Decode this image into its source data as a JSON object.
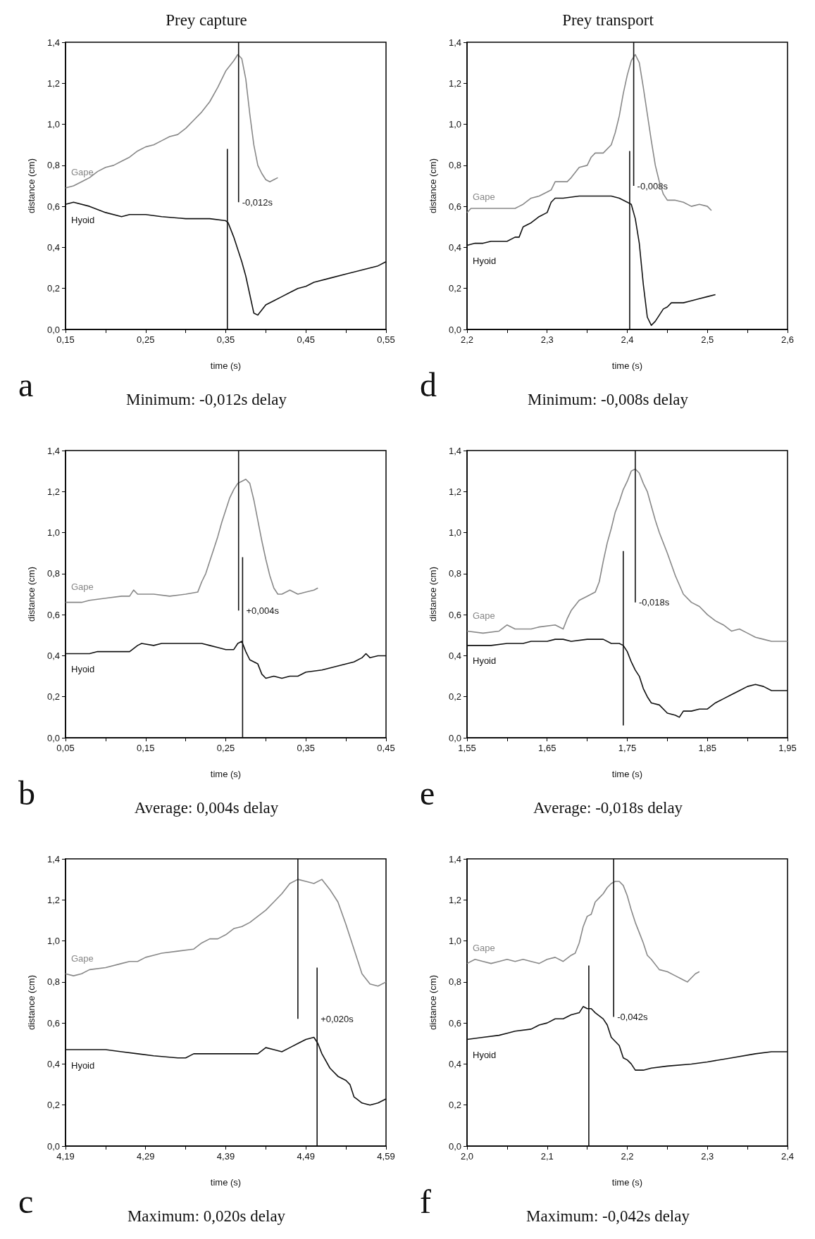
{
  "chart_data": [
    {
      "type": "line",
      "title": "Prey capture",
      "subtitle": "Minimum: -0,012s delay",
      "xlabel": "time (s)",
      "ylabel": "distance (cm)",
      "xlim": [
        0.15,
        0.55
      ],
      "xticks": [
        {
          "value": 0.15,
          "label": "0,15"
        },
        {
          "value": 0.2,
          "label": null
        },
        {
          "value": 0.25,
          "label": "0,25"
        },
        {
          "value": 0.3,
          "label": null
        },
        {
          "value": 0.35,
          "label": "0,35"
        },
        {
          "value": 0.4,
          "label": null
        },
        {
          "value": 0.45,
          "label": "0,45"
        },
        {
          "value": 0.5,
          "label": null
        },
        {
          "value": 0.55,
          "label": "0,55"
        }
      ],
      "ylim": [
        0,
        1.4
      ],
      "yticks": [
        {
          "value": 0,
          "label": "0,0"
        },
        {
          "value": 0.2,
          "label": "0,2"
        },
        {
          "value": 0.4,
          "label": "0,4"
        },
        {
          "value": 0.6,
          "label": "0,6"
        },
        {
          "value": 0.8,
          "label": "0,8"
        },
        {
          "value": 1,
          "label": "1,0"
        },
        {
          "value": 1.2,
          "label": "1,2"
        },
        {
          "value": 1.4,
          "label": "1,4"
        }
      ],
      "annotations": [
        "a",
        "-0,012s"
      ],
      "series": [
        {
          "name": "Gape",
          "color": "#888888",
          "x": [
            0.15,
            0.16,
            0.17,
            0.18,
            0.19,
            0.2,
            0.21,
            0.22,
            0.23,
            0.24,
            0.25,
            0.26,
            0.27,
            0.28,
            0.29,
            0.3,
            0.31,
            0.32,
            0.33,
            0.34,
            0.35,
            0.36,
            0.365,
            0.37,
            0.375,
            0.38,
            0.385,
            0.39,
            0.395,
            0.4,
            0.405,
            0.41,
            0.415
          ],
          "values": [
            0.69,
            0.7,
            0.72,
            0.74,
            0.77,
            0.79,
            0.8,
            0.82,
            0.84,
            0.87,
            0.89,
            0.9,
            0.92,
            0.94,
            0.95,
            0.98,
            1.02,
            1.06,
            1.11,
            1.18,
            1.26,
            1.31,
            1.34,
            1.32,
            1.22,
            1.05,
            0.9,
            0.8,
            0.76,
            0.73,
            0.72,
            0.73,
            0.74
          ]
        },
        {
          "name": "Hyoid",
          "color": "#111111",
          "x": [
            0.15,
            0.16,
            0.18,
            0.2,
            0.22,
            0.23,
            0.25,
            0.27,
            0.3,
            0.33,
            0.35,
            0.353,
            0.36,
            0.37,
            0.375,
            0.38,
            0.385,
            0.39,
            0.4,
            0.41,
            0.42,
            0.43,
            0.44,
            0.45,
            0.46,
            0.48,
            0.5,
            0.52,
            0.54,
            0.55
          ],
          "values": [
            0.61,
            0.62,
            0.6,
            0.57,
            0.55,
            0.56,
            0.56,
            0.55,
            0.54,
            0.54,
            0.53,
            0.52,
            0.45,
            0.33,
            0.26,
            0.17,
            0.08,
            0.07,
            0.12,
            0.14,
            0.16,
            0.18,
            0.2,
            0.21,
            0.23,
            0.25,
            0.27,
            0.29,
            0.31,
            0.33
          ]
        },
        {
          "color": "#111111",
          "x": [
            0.366,
            0.366
          ],
          "values": [
            1.4,
            0.62
          ]
        },
        {
          "color": "#111111",
          "x": [
            0.352,
            0.352
          ],
          "values": [
            0.88,
            0
          ]
        }
      ]
    },
    {
      "type": "line",
      "title": "Prey transport",
      "subtitle": "Minimum: -0,008s delay",
      "xlabel": "time (s)",
      "ylabel": "distance (cm)",
      "xlim": [
        2.2,
        2.6
      ],
      "xticks": [
        {
          "value": 2.2,
          "label": "2,2"
        },
        {
          "value": 2.25,
          "label": null
        },
        {
          "value": 2.3,
          "label": "2,3"
        },
        {
          "value": 2.35,
          "label": null
        },
        {
          "value": 2.4,
          "label": "2,4"
        },
        {
          "value": 2.45,
          "label": null
        },
        {
          "value": 2.5,
          "label": "2,5"
        },
        {
          "value": 2.55,
          "label": null
        },
        {
          "value": 2.6,
          "label": "2,6"
        }
      ],
      "ylim": [
        0,
        1.4
      ],
      "yticks": [
        {
          "value": 0,
          "label": "0,0"
        },
        {
          "value": 0.2,
          "label": "0,2"
        },
        {
          "value": 0.4,
          "label": "0,4"
        },
        {
          "value": 0.6,
          "label": "0,6"
        },
        {
          "value": 0.8,
          "label": "0,8"
        },
        {
          "value": 1,
          "label": "1,0"
        },
        {
          "value": 1.2,
          "label": "1,2"
        },
        {
          "value": 1.4,
          "label": "1,4"
        }
      ],
      "annotations": [
        "d",
        "-0,008s"
      ],
      "series": [
        {
          "name": "Gape",
          "color": "#888888",
          "x": [
            2.2,
            2.205,
            2.25,
            2.26,
            2.265,
            2.27,
            2.28,
            2.29,
            2.3,
            2.305,
            2.31,
            2.32,
            2.325,
            2.33,
            2.34,
            2.35,
            2.355,
            2.36,
            2.37,
            2.38,
            2.385,
            2.39,
            2.395,
            2.4,
            2.405,
            2.41,
            2.415,
            2.42,
            2.425,
            2.43,
            2.435,
            2.44,
            2.445,
            2.45,
            2.46,
            2.47,
            2.48,
            2.49,
            2.5,
            2.505
          ],
          "values": [
            0.57,
            0.59,
            0.59,
            0.59,
            0.6,
            0.61,
            0.64,
            0.65,
            0.67,
            0.68,
            0.72,
            0.72,
            0.72,
            0.74,
            0.79,
            0.8,
            0.84,
            0.86,
            0.86,
            0.9,
            0.96,
            1.04,
            1.15,
            1.24,
            1.31,
            1.34,
            1.3,
            1.18,
            1.05,
            0.92,
            0.8,
            0.72,
            0.66,
            0.63,
            0.63,
            0.62,
            0.6,
            0.61,
            0.6,
            0.58
          ]
        },
        {
          "name": "Hyoid",
          "color": "#111111",
          "x": [
            2.2,
            2.21,
            2.22,
            2.23,
            2.25,
            2.26,
            2.265,
            2.27,
            2.28,
            2.29,
            2.3,
            2.305,
            2.31,
            2.32,
            2.34,
            2.36,
            2.38,
            2.39,
            2.4,
            2.405,
            2.41,
            2.415,
            2.42,
            2.425,
            2.43,
            2.435,
            2.44,
            2.445,
            2.45,
            2.455,
            2.47,
            2.48,
            2.49,
            2.5,
            2.51
          ],
          "values": [
            0.41,
            0.42,
            0.42,
            0.43,
            0.43,
            0.45,
            0.45,
            0.5,
            0.52,
            0.55,
            0.57,
            0.62,
            0.64,
            0.64,
            0.65,
            0.65,
            0.65,
            0.64,
            0.62,
            0.61,
            0.54,
            0.42,
            0.22,
            0.06,
            0.02,
            0.04,
            0.07,
            0.1,
            0.11,
            0.13,
            0.13,
            0.14,
            0.15,
            0.16,
            0.17
          ]
        },
        {
          "color": "#111111",
          "x": [
            2.408,
            2.408
          ],
          "values": [
            1.4,
            0.7
          ]
        },
        {
          "color": "#111111",
          "x": [
            2.403,
            2.403
          ],
          "values": [
            0.87,
            0
          ]
        }
      ]
    },
    {
      "type": "line",
      "subtitle": "Average: 0,004s delay",
      "xlabel": "time (s)",
      "ylabel": "distance (cm)",
      "xlim": [
        0.05,
        0.45
      ],
      "xticks": [
        {
          "value": 0.05,
          "label": "0,05"
        },
        {
          "value": 0.1,
          "label": null
        },
        {
          "value": 0.15,
          "label": "0,15"
        },
        {
          "value": 0.2,
          "label": null
        },
        {
          "value": 0.25,
          "label": "0,25"
        },
        {
          "value": 0.3,
          "label": null
        },
        {
          "value": 0.35,
          "label": "0,35"
        },
        {
          "value": 0.4,
          "label": null
        },
        {
          "value": 0.45,
          "label": "0,45"
        }
      ],
      "ylim": [
        0,
        1.4
      ],
      "yticks": [
        {
          "value": 0,
          "label": "0,0"
        },
        {
          "value": 0.2,
          "label": "0,2"
        },
        {
          "value": 0.4,
          "label": "0,4"
        },
        {
          "value": 0.6,
          "label": "0,6"
        },
        {
          "value": 0.8,
          "label": "0,8"
        },
        {
          "value": 1,
          "label": "1,0"
        },
        {
          "value": 1.2,
          "label": "1,2"
        },
        {
          "value": 1.4,
          "label": "1,4"
        }
      ],
      "annotations": [
        "b",
        "+0,004s"
      ],
      "series": [
        {
          "name": "Gape",
          "color": "#888888",
          "x": [
            0.05,
            0.07,
            0.08,
            0.1,
            0.12,
            0.13,
            0.135,
            0.14,
            0.16,
            0.18,
            0.2,
            0.215,
            0.22,
            0.225,
            0.23,
            0.235,
            0.24,
            0.245,
            0.25,
            0.255,
            0.26,
            0.265,
            0.27,
            0.275,
            0.28,
            0.285,
            0.29,
            0.295,
            0.3,
            0.305,
            0.31,
            0.315,
            0.32,
            0.33,
            0.34,
            0.35,
            0.36,
            0.365
          ],
          "values": [
            0.66,
            0.66,
            0.67,
            0.68,
            0.69,
            0.69,
            0.72,
            0.7,
            0.7,
            0.69,
            0.7,
            0.71,
            0.76,
            0.8,
            0.86,
            0.92,
            0.98,
            1.05,
            1.11,
            1.17,
            1.21,
            1.24,
            1.25,
            1.26,
            1.24,
            1.16,
            1.06,
            0.96,
            0.87,
            0.79,
            0.73,
            0.7,
            0.7,
            0.72,
            0.7,
            0.71,
            0.72,
            0.73
          ]
        },
        {
          "name": "Hyoid",
          "color": "#111111",
          "x": [
            0.05,
            0.08,
            0.09,
            0.12,
            0.13,
            0.14,
            0.145,
            0.16,
            0.17,
            0.19,
            0.22,
            0.23,
            0.24,
            0.25,
            0.26,
            0.265,
            0.27,
            0.275,
            0.28,
            0.29,
            0.295,
            0.3,
            0.31,
            0.32,
            0.33,
            0.34,
            0.35,
            0.37,
            0.39,
            0.41,
            0.42,
            0.425,
            0.43,
            0.44,
            0.45
          ],
          "values": [
            0.41,
            0.41,
            0.42,
            0.42,
            0.42,
            0.45,
            0.46,
            0.45,
            0.46,
            0.46,
            0.46,
            0.45,
            0.44,
            0.43,
            0.43,
            0.46,
            0.47,
            0.42,
            0.38,
            0.36,
            0.31,
            0.29,
            0.3,
            0.29,
            0.3,
            0.3,
            0.32,
            0.33,
            0.35,
            0.37,
            0.39,
            0.41,
            0.39,
            0.4,
            0.4
          ]
        },
        {
          "color": "#111111",
          "x": [
            0.266,
            0.266
          ],
          "values": [
            1.4,
            0.62
          ]
        },
        {
          "color": "#111111",
          "x": [
            0.271,
            0.271
          ],
          "values": [
            0.88,
            0
          ]
        }
      ]
    },
    {
      "type": "line",
      "subtitle": "Average: -0,018s delay",
      "xlabel": "time (s)",
      "ylabel": "distance (cm)",
      "xlim": [
        1.55,
        1.95
      ],
      "xticks": [
        {
          "value": 1.55,
          "label": "1,55"
        },
        {
          "value": 1.6,
          "label": null
        },
        {
          "value": 1.65,
          "label": "1,65"
        },
        {
          "value": 1.7,
          "label": null
        },
        {
          "value": 1.75,
          "label": "1,75"
        },
        {
          "value": 1.8,
          "label": null
        },
        {
          "value": 1.85,
          "label": "1,85"
        },
        {
          "value": 1.9,
          "label": null
        },
        {
          "value": 1.95,
          "label": "1,95"
        }
      ],
      "ylim": [
        0,
        1.4
      ],
      "yticks": [
        {
          "value": 0,
          "label": "0,0"
        },
        {
          "value": 0.2,
          "label": "0,2"
        },
        {
          "value": 0.4,
          "label": "0,4"
        },
        {
          "value": 0.6,
          "label": "0,6"
        },
        {
          "value": 0.8,
          "label": "0,8"
        },
        {
          "value": 1,
          "label": "1,0"
        },
        {
          "value": 1.2,
          "label": "1,2"
        },
        {
          "value": 1.4,
          "label": "1,4"
        }
      ],
      "annotations": [
        "e",
        "-0,018s"
      ],
      "series": [
        {
          "name": "Gape",
          "color": "#888888",
          "x": [
            1.55,
            1.57,
            1.59,
            1.6,
            1.61,
            1.63,
            1.64,
            1.66,
            1.67,
            1.675,
            1.68,
            1.69,
            1.7,
            1.71,
            1.715,
            1.72,
            1.725,
            1.73,
            1.735,
            1.74,
            1.745,
            1.75,
            1.755,
            1.76,
            1.765,
            1.77,
            1.775,
            1.78,
            1.785,
            1.79,
            1.8,
            1.81,
            1.82,
            1.83,
            1.84,
            1.85,
            1.86,
            1.87,
            1.88,
            1.89,
            1.9,
            1.91,
            1.92,
            1.93,
            1.95
          ],
          "values": [
            0.52,
            0.51,
            0.52,
            0.55,
            0.53,
            0.53,
            0.54,
            0.55,
            0.53,
            0.58,
            0.62,
            0.67,
            0.69,
            0.71,
            0.76,
            0.86,
            0.95,
            1.02,
            1.1,
            1.15,
            1.21,
            1.25,
            1.3,
            1.31,
            1.29,
            1.24,
            1.2,
            1.13,
            1.06,
            1,
            0.9,
            0.79,
            0.7,
            0.66,
            0.64,
            0.6,
            0.57,
            0.55,
            0.52,
            0.53,
            0.51,
            0.49,
            0.48,
            0.47,
            0.47
          ]
        },
        {
          "name": "Hyoid",
          "color": "#111111",
          "x": [
            1.55,
            1.58,
            1.6,
            1.62,
            1.63,
            1.65,
            1.66,
            1.67,
            1.68,
            1.7,
            1.72,
            1.73,
            1.74,
            1.745,
            1.75,
            1.755,
            1.76,
            1.765,
            1.77,
            1.775,
            1.78,
            1.79,
            1.8,
            1.81,
            1.815,
            1.82,
            1.83,
            1.84,
            1.85,
            1.86,
            1.87,
            1.88,
            1.89,
            1.9,
            1.91,
            1.92,
            1.93,
            1.95
          ],
          "values": [
            0.45,
            0.45,
            0.46,
            0.46,
            0.47,
            0.47,
            0.48,
            0.48,
            0.47,
            0.48,
            0.48,
            0.46,
            0.46,
            0.45,
            0.42,
            0.37,
            0.33,
            0.3,
            0.24,
            0.2,
            0.17,
            0.16,
            0.12,
            0.11,
            0.1,
            0.13,
            0.13,
            0.14,
            0.14,
            0.17,
            0.19,
            0.21,
            0.23,
            0.25,
            0.26,
            0.25,
            0.23,
            0.23
          ]
        },
        {
          "color": "#111111",
          "x": [
            1.76,
            1.76
          ],
          "values": [
            1.4,
            0.66
          ]
        },
        {
          "color": "#111111",
          "x": [
            1.745,
            1.745
          ],
          "values": [
            0.91,
            0.06
          ]
        }
      ]
    },
    {
      "type": "line",
      "subtitle": "Maximum: 0,020s delay",
      "xlabel": "time (s)",
      "ylabel": "distance (cm)",
      "xlim": [
        4.19,
        4.59
      ],
      "xticks": [
        {
          "value": 4.19,
          "label": "4,19"
        },
        {
          "value": 4.24,
          "label": null
        },
        {
          "value": 4.29,
          "label": "4,29"
        },
        {
          "value": 4.34,
          "label": null
        },
        {
          "value": 4.39,
          "label": "4,39"
        },
        {
          "value": 4.44,
          "label": null
        },
        {
          "value": 4.49,
          "label": "4,49"
        },
        {
          "value": 4.54,
          "label": null
        },
        {
          "value": 4.59,
          "label": "4,59"
        }
      ],
      "ylim": [
        0,
        1.4
      ],
      "yticks": [
        {
          "value": 0,
          "label": "0,0"
        },
        {
          "value": 0.2,
          "label": "0,2"
        },
        {
          "value": 0.4,
          "label": "0,4"
        },
        {
          "value": 0.6,
          "label": "0,6"
        },
        {
          "value": 0.8,
          "label": "0,8"
        },
        {
          "value": 1,
          "label": "1,0"
        },
        {
          "value": 1.2,
          "label": "1,2"
        },
        {
          "value": 1.4,
          "label": "1,4"
        }
      ],
      "annotations": [
        "c",
        "+0,020s"
      ],
      "series": [
        {
          "name": "Gape",
          "color": "#888888",
          "x": [
            4.19,
            4.2,
            4.21,
            4.22,
            4.24,
            4.26,
            4.27,
            4.28,
            4.29,
            4.3,
            4.31,
            4.33,
            4.35,
            4.36,
            4.37,
            4.38,
            4.39,
            4.4,
            4.41,
            4.42,
            4.43,
            4.44,
            4.45,
            4.46,
            4.47,
            4.48,
            4.49,
            4.5,
            4.51,
            4.52,
            4.53,
            4.54,
            4.55,
            4.56,
            4.57,
            4.58,
            4.59
          ],
          "values": [
            0.84,
            0.83,
            0.84,
            0.86,
            0.87,
            0.89,
            0.9,
            0.9,
            0.92,
            0.93,
            0.94,
            0.95,
            0.96,
            0.99,
            1.01,
            1.01,
            1.03,
            1.06,
            1.07,
            1.09,
            1.12,
            1.15,
            1.19,
            1.23,
            1.28,
            1.3,
            1.29,
            1.28,
            1.3,
            1.25,
            1.19,
            1.08,
            0.96,
            0.84,
            0.79,
            0.78,
            0.8
          ]
        },
        {
          "name": "Hyoid",
          "color": "#111111",
          "x": [
            4.19,
            4.24,
            4.26,
            4.28,
            4.3,
            4.33,
            4.34,
            4.35,
            4.37,
            4.4,
            4.43,
            4.44,
            4.45,
            4.46,
            4.47,
            4.48,
            4.49,
            4.5,
            4.505,
            4.51,
            4.52,
            4.53,
            4.54,
            4.545,
            4.55,
            4.56,
            4.57,
            4.58,
            4.59
          ],
          "values": [
            0.47,
            0.47,
            0.46,
            0.45,
            0.44,
            0.43,
            0.43,
            0.45,
            0.45,
            0.45,
            0.45,
            0.48,
            0.47,
            0.46,
            0.48,
            0.5,
            0.52,
            0.53,
            0.5,
            0.45,
            0.38,
            0.34,
            0.32,
            0.3,
            0.24,
            0.21,
            0.2,
            0.21,
            0.23
          ]
        },
        {
          "color": "#111111",
          "x": [
            4.48,
            4.48
          ],
          "values": [
            1.4,
            0.62
          ]
        },
        {
          "color": "#111111",
          "x": [
            4.504,
            4.504
          ],
          "values": [
            0.87,
            0
          ]
        }
      ]
    },
    {
      "type": "line",
      "subtitle": "Maximum: -0,042s delay",
      "xlabel": "time (s)",
      "ylabel": "distance (cm)",
      "xlim": [
        2.0,
        2.4
      ],
      "xticks": [
        {
          "value": 2,
          "label": "2,0"
        },
        {
          "value": 2.05,
          "label": null
        },
        {
          "value": 2.1,
          "label": "2,1"
        },
        {
          "value": 2.15,
          "label": null
        },
        {
          "value": 2.2,
          "label": "2,2"
        },
        {
          "value": 2.25,
          "label": null
        },
        {
          "value": 2.3,
          "label": "2,3"
        },
        {
          "value": 2.35,
          "label": null
        },
        {
          "value": 2.4,
          "label": "2,4"
        }
      ],
      "ylim": [
        0,
        1.4
      ],
      "yticks": [
        {
          "value": 0,
          "label": "0,0"
        },
        {
          "value": 0.2,
          "label": "0,2"
        },
        {
          "value": 0.4,
          "label": "0,4"
        },
        {
          "value": 0.6,
          "label": "0,6"
        },
        {
          "value": 0.8,
          "label": "0,8"
        },
        {
          "value": 1,
          "label": "1,0"
        },
        {
          "value": 1.2,
          "label": "1,2"
        },
        {
          "value": 1.4,
          "label": "1,4"
        }
      ],
      "annotations": [
        "f",
        "-0,042s"
      ],
      "series": [
        {
          "name": "Gape",
          "color": "#888888",
          "x": [
            2,
            2.01,
            2.02,
            2.03,
            2.04,
            2.05,
            2.06,
            2.07,
            2.08,
            2.09,
            2.1,
            2.11,
            2.12,
            2.13,
            2.135,
            2.14,
            2.145,
            2.15,
            2.155,
            2.16,
            2.165,
            2.17,
            2.175,
            2.18,
            2.185,
            2.19,
            2.195,
            2.2,
            2.205,
            2.21,
            2.215,
            2.22,
            2.225,
            2.23,
            2.24,
            2.25,
            2.26,
            2.27,
            2.275,
            2.28,
            2.285,
            2.29
          ],
          "values": [
            0.89,
            0.91,
            0.9,
            0.89,
            0.9,
            0.91,
            0.9,
            0.91,
            0.9,
            0.89,
            0.91,
            0.92,
            0.9,
            0.93,
            0.94,
            0.99,
            1.07,
            1.12,
            1.13,
            1.19,
            1.21,
            1.23,
            1.26,
            1.28,
            1.29,
            1.29,
            1.27,
            1.22,
            1.15,
            1.09,
            1.04,
            0.99,
            0.93,
            0.91,
            0.86,
            0.85,
            0.83,
            0.81,
            0.8,
            0.82,
            0.84,
            0.85
          ]
        },
        {
          "name": "Hyoid",
          "color": "#111111",
          "x": [
            2,
            2.02,
            2.04,
            2.05,
            2.06,
            2.08,
            2.09,
            2.1,
            2.11,
            2.12,
            2.13,
            2.14,
            2.145,
            2.15,
            2.155,
            2.16,
            2.17,
            2.175,
            2.18,
            2.19,
            2.195,
            2.2,
            2.205,
            2.21,
            2.22,
            2.23,
            2.25,
            2.28,
            2.3,
            2.33,
            2.36,
            2.38,
            2.4
          ],
          "values": [
            0.52,
            0.53,
            0.54,
            0.55,
            0.56,
            0.57,
            0.59,
            0.6,
            0.62,
            0.62,
            0.64,
            0.65,
            0.68,
            0.67,
            0.67,
            0.65,
            0.62,
            0.59,
            0.53,
            0.49,
            0.43,
            0.42,
            0.4,
            0.37,
            0.37,
            0.38,
            0.39,
            0.4,
            0.41,
            0.43,
            0.45,
            0.46,
            0.46
          ]
        },
        {
          "color": "#111111",
          "x": [
            2.183,
            2.183
          ],
          "values": [
            1.4,
            0.63
          ]
        },
        {
          "color": "#111111",
          "x": [
            2.152,
            2.152
          ],
          "values": [
            0.88,
            0
          ]
        }
      ]
    }
  ]
}
